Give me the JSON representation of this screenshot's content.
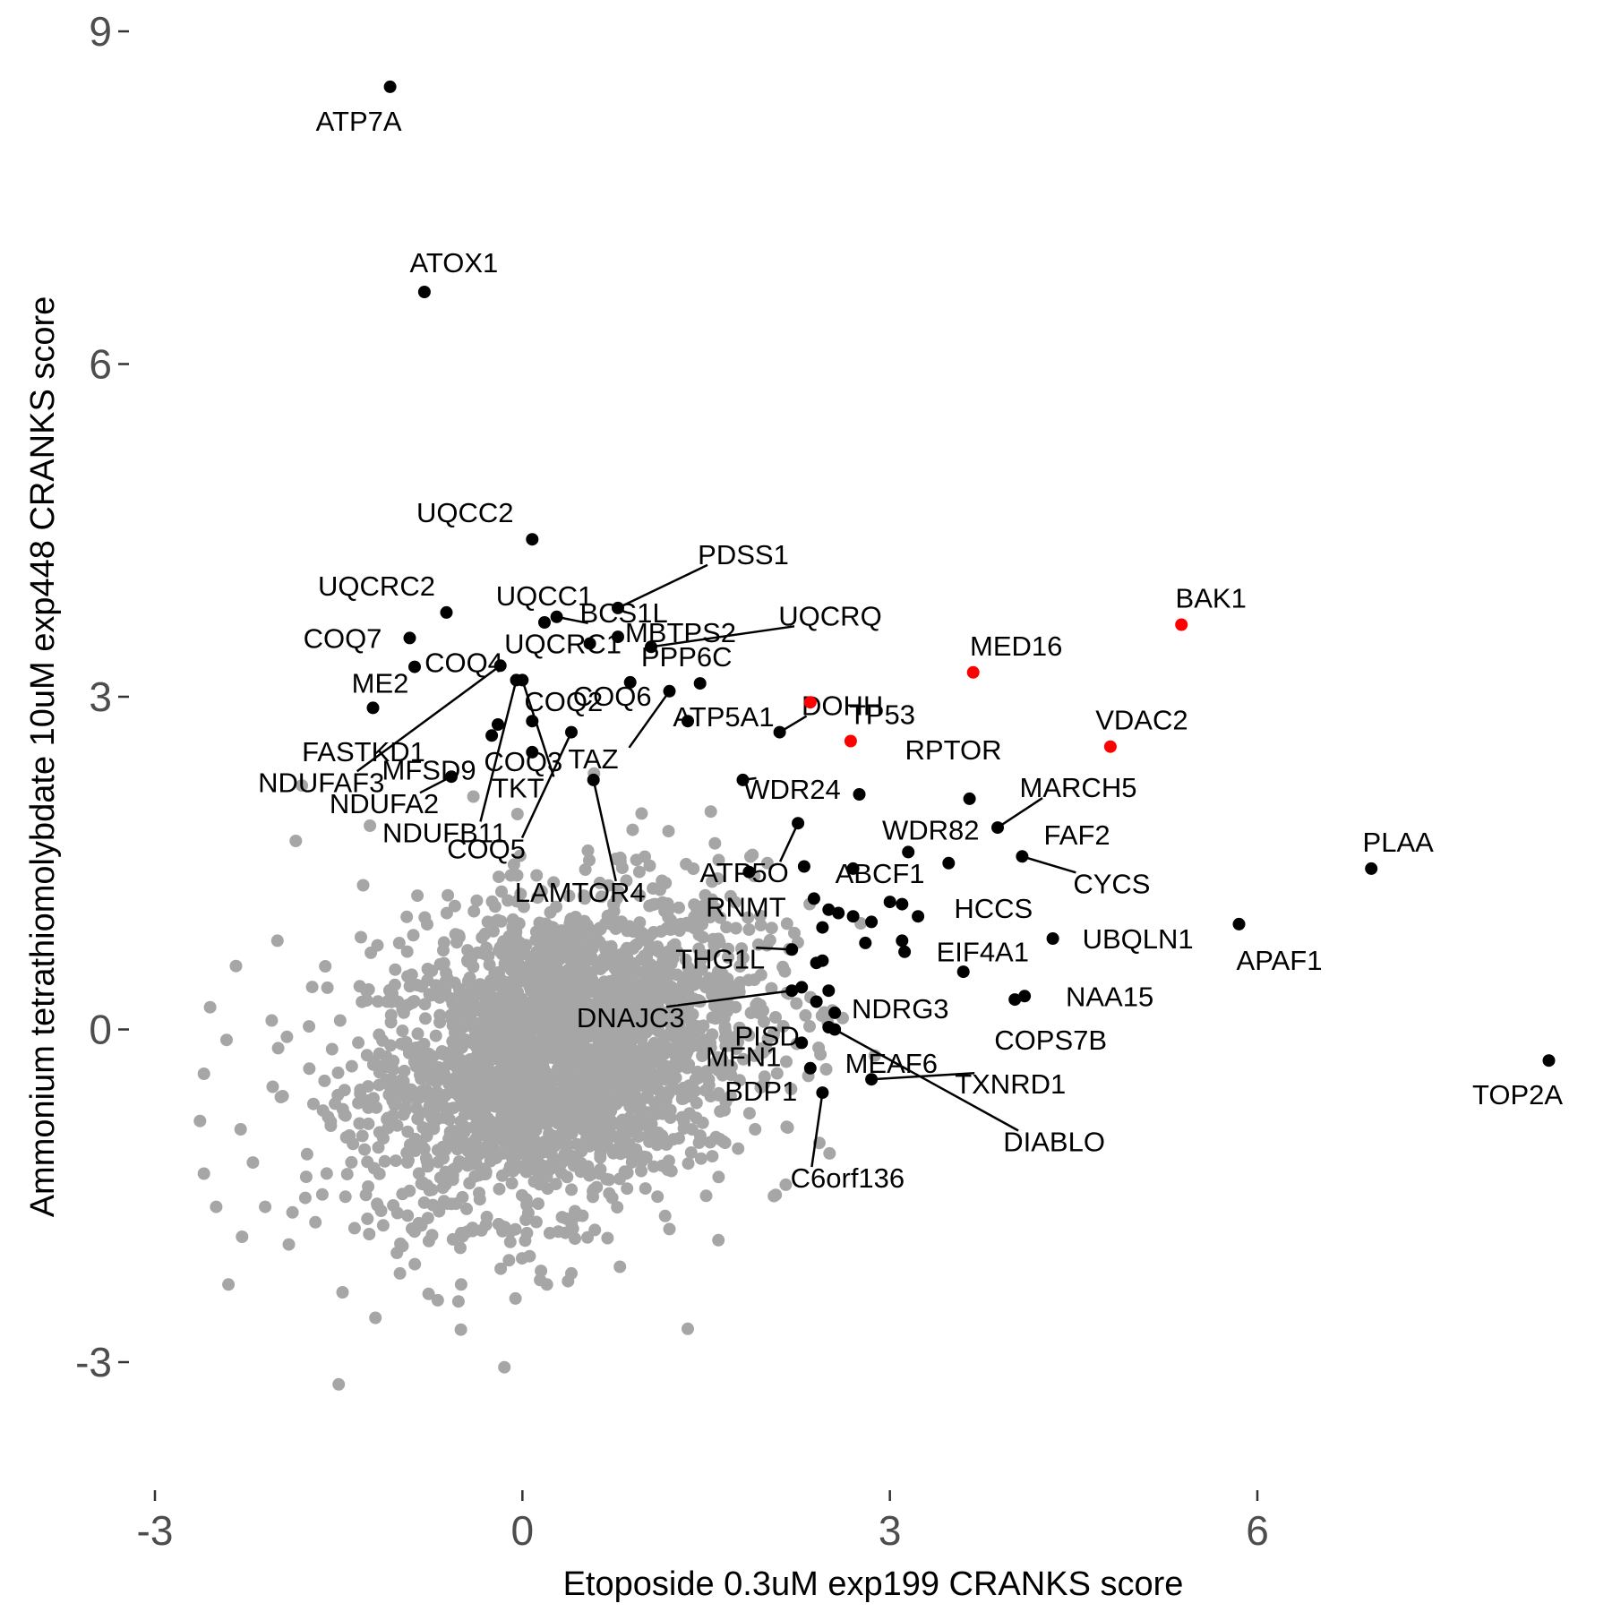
{
  "chart_data": {
    "type": "scatter",
    "xlabel": "Etoposide 0.3uM exp199 CRANKS score",
    "ylabel": "Ammonium tetrathiomolybdate 10uM exp448 CRANKS score",
    "xlim": [
      -3.3,
      8.8
    ],
    "ylim": [
      -3.6,
      9.3
    ],
    "x_ticks": [
      -3,
      0,
      3,
      6
    ],
    "x_tick_labels": [
      "-3",
      "0",
      "3",
      "6"
    ],
    "y_ticks": [
      -3,
      0,
      3,
      6,
      9
    ],
    "y_tick_labels": [
      "-3",
      "0",
      "3",
      "6",
      "9"
    ],
    "grid": false,
    "background_cloud": {
      "description_hidden": true,
      "color": "#a6a6a6",
      "center": [
        0.3,
        -0.2
      ],
      "points": [
        [
          -2.6,
          -1.3
        ],
        [
          -2.5,
          -1.6
        ],
        [
          -2.4,
          -2.3
        ],
        [
          -2.55,
          0.2
        ],
        [
          -1.5,
          -3.2
        ],
        [
          -1.2,
          -2.6
        ],
        [
          1.35,
          -2.7
        ],
        [
          -1.8,
          2.2
        ],
        [
          -1.85,
          1.7
        ],
        [
          -2.6,
          -0.4
        ],
        [
          -2.3,
          -0.9
        ],
        [
          -2.2,
          -1.2
        ],
        [
          -2.0,
          0.8
        ],
        [
          1.6,
          -1.9
        ],
        [
          1.5,
          -1.5
        ],
        [
          2.15,
          -1.4
        ],
        [
          1.9,
          -0.9
        ],
        [
          2.0,
          1.5
        ],
        [
          1.85,
          0.9
        ],
        [
          -1.3,
          1.3
        ],
        [
          -1.0,
          -2.2
        ],
        [
          0.2,
          -2.3
        ],
        [
          0.4,
          -2.2
        ],
        [
          -0.5,
          -2.3
        ],
        [
          1.2,
          -1.8
        ],
        [
          -2.1,
          -1.6
        ],
        [
          1.7,
          1.2
        ],
        [
          0.9,
          1.8
        ],
        [
          -0.4,
          2.1
        ],
        [
          1.7,
          -0.6
        ]
      ]
    },
    "series": [
      {
        "color": "#000000",
        "points": [
          {
            "label": "ATP7A",
            "x": -1.08,
            "y": 8.5
          },
          {
            "label": "ATOX1",
            "x": -0.8,
            "y": 6.65
          },
          {
            "label": "UQCC2",
            "x": 0.08,
            "y": 4.42
          },
          {
            "label": "BCS1L",
            "x": 0.28,
            "y": 3.72
          },
          {
            "label": "UQCC1",
            "x": 0.18,
            "y": 3.67
          },
          {
            "label": "PDSS1",
            "x": 0.78,
            "y": 3.8
          },
          {
            "label": "UQCRC2",
            "x": -0.62,
            "y": 3.76
          },
          {
            "label": "MBTPS2",
            "x": 0.78,
            "y": 3.54
          },
          {
            "label": "UQCRQ",
            "x": 1.05,
            "y": 3.45
          },
          {
            "label": "COQ7",
            "x": -0.92,
            "y": 3.53
          },
          {
            "label": "COQ4",
            "x": -0.88,
            "y": 3.27
          },
          {
            "label": "UQCRC1",
            "x": 0.55,
            "y": 3.48
          },
          {
            "label": "COQ6",
            "x": 0.88,
            "y": 3.13
          },
          {
            "label": "ME2",
            "x": -1.22,
            "y": 2.9
          },
          {
            "label": "PPP6C",
            "x": 1.45,
            "y": 3.12
          },
          {
            "label": "DOHH",
            "x": 2.1,
            "y": 2.68
          },
          {
            "label": "COQ2",
            "x": 0.08,
            "y": 2.78
          },
          {
            "label": "ATP5A1",
            "x": 1.35,
            "y": 2.78
          },
          {
            "label": "FASTKD1",
            "x": -0.2,
            "y": 2.75
          },
          {
            "label": "MFSD9",
            "x": -0.25,
            "y": 2.65
          },
          {
            "label": "TAZ",
            "x": 1.2,
            "y": 3.05
          },
          {
            "label": "NDUFA2",
            "x": -0.58,
            "y": 2.28
          },
          {
            "label": "COQ3",
            "x": 0.08,
            "y": 2.5
          },
          {
            "label": "LAMTOR4",
            "x": 0.58,
            "y": 2.25
          },
          {
            "label": "NDUFAF3",
            "x": -0.18,
            "y": 3.28
          },
          {
            "label": "NDUFB11",
            "x": -0.05,
            "y": 3.15
          },
          {
            "label": "COQ5",
            "x": 0.4,
            "y": 2.68
          },
          {
            "label": "TKT",
            "x": 0.0,
            "y": 3.15
          },
          {
            "label": "WDR24",
            "x": 1.8,
            "y": 2.25
          },
          {
            "label": "ATP5O",
            "x": 2.25,
            "y": 1.86
          },
          {
            "label": "RNMT",
            "x": 2.3,
            "y": 1.47
          },
          {
            "label": "ABCF1",
            "x": 2.7,
            "y": 1.45
          },
          {
            "label": "RPTOR",
            "x": 2.75,
            "y": 2.12
          },
          {
            "label": "WDR82",
            "x": 3.15,
            "y": 1.6
          },
          {
            "label": "MARCH5",
            "x": 3.88,
            "y": 1.82
          },
          {
            "label": "FAF2",
            "x": 3.65,
            "y": 2.08
          },
          {
            "label": "CYCS",
            "x": 4.08,
            "y": 1.56
          },
          {
            "label": "HCCS",
            "x": 3.48,
            "y": 1.5
          },
          {
            "label": "PLAA",
            "x": 6.93,
            "y": 1.45
          },
          {
            "label": "UBQLN1",
            "x": 4.33,
            "y": 0.82
          },
          {
            "label": "APAF1",
            "x": 5.85,
            "y": 0.95
          },
          {
            "label": "EIF4A1",
            "x": 3.1,
            "y": 0.8
          },
          {
            "label": "THG1L",
            "x": 2.2,
            "y": 0.72
          },
          {
            "label": "DNAJC3",
            "x": 2.2,
            "y": 0.35
          },
          {
            "label": "NDRG3",
            "x": 2.5,
            "y": 0.35
          },
          {
            "label": "PISD",
            "x": 2.4,
            "y": 0.25
          },
          {
            "label": "NAA15",
            "x": 4.1,
            "y": 0.3
          },
          {
            "label": "COPS7B",
            "x": 4.02,
            "y": 0.27
          },
          {
            "label": "MEAF6",
            "x": 2.5,
            "y": 0.02
          },
          {
            "label": "MFN1",
            "x": 2.28,
            "y": -0.12
          },
          {
            "label": "TXNRD1",
            "x": 2.85,
            "y": -0.45
          },
          {
            "label": "DIABLO",
            "x": 2.55,
            "y": 0.0
          },
          {
            "label": "BDP1",
            "x": 2.35,
            "y": -0.35
          },
          {
            "label": "C6orf136",
            "x": 2.45,
            "y": -0.57
          },
          {
            "label": "TOP2A",
            "x": 8.38,
            "y": -0.28
          },
          {
            "label": "",
            "x": 3.0,
            "y": 1.15
          },
          {
            "label": "",
            "x": 3.23,
            "y": 1.02
          },
          {
            "label": "",
            "x": 3.1,
            "y": 1.13
          },
          {
            "label": "",
            "x": 2.7,
            "y": 1.02
          },
          {
            "label": "",
            "x": 2.85,
            "y": 0.97
          },
          {
            "label": "",
            "x": 2.5,
            "y": 1.08
          },
          {
            "label": "",
            "x": 2.58,
            "y": 1.05
          },
          {
            "label": "",
            "x": 2.45,
            "y": 0.92
          },
          {
            "label": "",
            "x": 2.8,
            "y": 0.78
          },
          {
            "label": "",
            "x": 3.12,
            "y": 0.7
          },
          {
            "label": "",
            "x": 2.45,
            "y": 0.62
          },
          {
            "label": "",
            "x": 2.4,
            "y": 0.6
          },
          {
            "label": "",
            "x": 3.6,
            "y": 0.52
          },
          {
            "label": "",
            "x": 2.28,
            "y": 0.38
          },
          {
            "label": "",
            "x": 2.55,
            "y": 0.15
          },
          {
            "label": "",
            "x": 1.85,
            "y": 1.42
          },
          {
            "label": "",
            "x": 2.38,
            "y": 1.18
          }
        ]
      },
      {
        "color": "#ff0000",
        "points": [
          {
            "label": "BAK1",
            "x": 5.38,
            "y": 3.65
          },
          {
            "label": "MED16",
            "x": 3.68,
            "y": 3.22
          },
          {
            "label": "VDAC2",
            "x": 4.8,
            "y": 2.55
          },
          {
            "label": "TP53",
            "x": 2.68,
            "y": 2.6
          },
          {
            "label": "",
            "x": 2.35,
            "y": 2.95
          }
        ]
      }
    ]
  }
}
